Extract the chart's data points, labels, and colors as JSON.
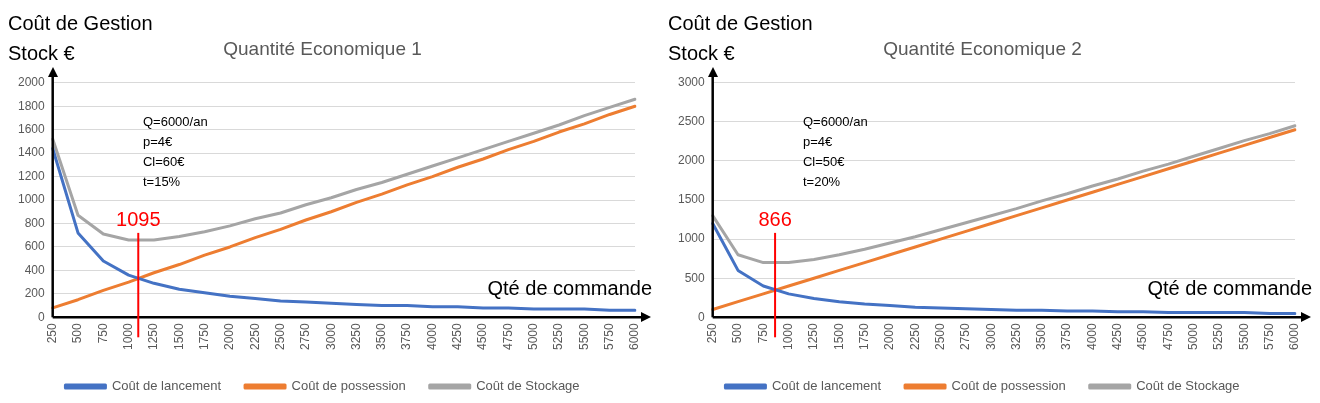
{
  "chart_data": [
    {
      "type": "line",
      "title": "Quantité Economique 1",
      "xlabel": "Qté de commande",
      "ylabel": "Coût de Gestion Stock €",
      "categories": [
        "250",
        "500",
        "750",
        "1000",
        "1250",
        "1500",
        "1750",
        "2000",
        "2250",
        "2500",
        "2750",
        "3000",
        "3250",
        "3500",
        "3750",
        "4000",
        "4250",
        "4500",
        "4750",
        "5000",
        "5250",
        "5500",
        "5750",
        "6000"
      ],
      "series": [
        {
          "name": "Coût de lancement",
          "color": "#4472c4",
          "values": [
            1440,
            720,
            480,
            360,
            290,
            240,
            210,
            180,
            160,
            140,
            130,
            120,
            110,
            100,
            100,
            90,
            90,
            80,
            80,
            70,
            70,
            70,
            60,
            60
          ]
        },
        {
          "name": "Coût de possession",
          "color": "#ed7d31",
          "values": [
            80,
            150,
            230,
            300,
            380,
            450,
            530,
            600,
            680,
            750,
            830,
            900,
            980,
            1050,
            1130,
            1200,
            1280,
            1350,
            1430,
            1500,
            1580,
            1650,
            1730,
            1800
          ]
        },
        {
          "name": "Coût de Stockage",
          "color": "#a5a5a5",
          "values": [
            1520,
            870,
            710,
            660,
            660,
            690,
            730,
            780,
            840,
            890,
            960,
            1020,
            1090,
            1150,
            1220,
            1290,
            1360,
            1430,
            1500,
            1570,
            1640,
            1720,
            1790,
            1860
          ]
        }
      ],
      "ylim": [
        0,
        2000
      ],
      "yticks": [
        0,
        200,
        400,
        600,
        800,
        1000,
        1200,
        1400,
        1600,
        1800,
        2000
      ],
      "grid": "y",
      "legend": "bottom",
      "marker": "none",
      "line_style": "solid",
      "annotations": [
        "Q=6000/an",
        "p=4€",
        "Cl=60€",
        "t=15%",
        {
          "text": "1095"
        }
      ]
    },
    {
      "type": "line",
      "title": "Quantité Economique 2",
      "xlabel": "Qté de commande",
      "ylabel": "Coût de Gestion Stock €",
      "categories": [
        "250",
        "500",
        "750",
        "1000",
        "1250",
        "1500",
        "1750",
        "2000",
        "2250",
        "2500",
        "2750",
        "3000",
        "3250",
        "3500",
        "3750",
        "4000",
        "4250",
        "4500",
        "4750",
        "5000",
        "5250",
        "5500",
        "5750",
        "6000"
      ],
      "series": [
        {
          "name": "Coût de lancement",
          "color": "#4472c4",
          "values": [
            1200,
            600,
            400,
            300,
            240,
            200,
            170,
            150,
            130,
            120,
            110,
            100,
            90,
            90,
            80,
            80,
            70,
            70,
            60,
            60,
            60,
            60,
            50,
            50
          ]
        },
        {
          "name": "Coût de possession",
          "color": "#ed7d31",
          "values": [
            100,
            200,
            300,
            400,
            500,
            600,
            700,
            800,
            900,
            1000,
            1100,
            1200,
            1300,
            1400,
            1500,
            1600,
            1700,
            1800,
            1900,
            2000,
            2100,
            2200,
            2300,
            2400
          ]
        },
        {
          "name": "Coût de Stockage",
          "color": "#a5a5a5",
          "values": [
            1300,
            800,
            700,
            700,
            740,
            800,
            870,
            950,
            1030,
            1120,
            1210,
            1300,
            1390,
            1490,
            1580,
            1680,
            1770,
            1870,
            1960,
            2060,
            2160,
            2260,
            2350,
            2450
          ]
        }
      ],
      "ylim": [
        0,
        3000
      ],
      "yticks": [
        0,
        500,
        1000,
        1500,
        2000,
        2500,
        3000
      ],
      "grid": "y",
      "legend": "bottom",
      "marker": "none",
      "line_style": "solid",
      "annotations": [
        "Q=6000/an",
        "p=4€",
        "Cl=50€",
        "t=20%",
        {
          "text": "866"
        }
      ]
    }
  ]
}
